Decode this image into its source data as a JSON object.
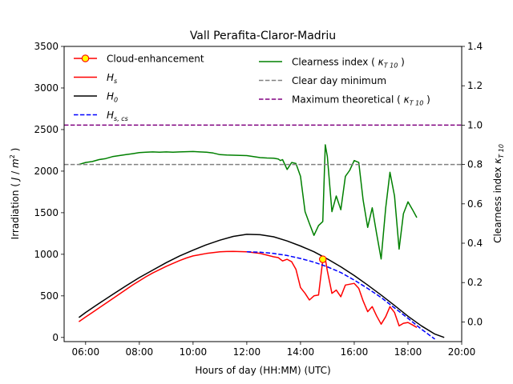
{
  "chart_data": {
    "type": "line",
    "title": "Vall Perafita-Claror-Madriu",
    "xlabel": "Hours of day (HH:MM) (UTC)",
    "ylabel_left": "Irradiation ( J / m² )",
    "ylabel_right": "Clearness index κT 10",
    "xlim_hours": [
      5.2,
      20.0
    ],
    "ylim_left": [
      -50,
      3500
    ],
    "ylim_right": [
      -0.1,
      1.4
    ],
    "x_ticks": [
      6,
      8,
      10,
      12,
      14,
      16,
      18,
      20
    ],
    "x_tick_labels": [
      "06:00",
      "08:00",
      "10:00",
      "12:00",
      "14:00",
      "16:00",
      "18:00",
      "20:00"
    ],
    "y_left_ticks": [
      0,
      500,
      1000,
      1500,
      2000,
      2500,
      3000,
      3500
    ],
    "y_right_ticks": [
      0.0,
      0.2,
      0.4,
      0.6,
      0.8,
      1.0,
      1.2,
      1.4
    ],
    "y_right_tick_labels": [
      "0.0",
      "0.2",
      "0.4",
      "0.6",
      "0.8",
      "1.0",
      "1.2",
      "1.4"
    ],
    "grid": false,
    "legend_left_position": "upper-left",
    "legend_right_position": "upper-center",
    "legend_left": [
      {
        "key": "cloud",
        "label": "Cloud-enhancement",
        "style": "marker",
        "color": "#ff0000",
        "fill": "#ffff00"
      },
      {
        "key": "hs",
        "label": "Hs",
        "label_main": "H",
        "label_sub": "s",
        "style": "solid",
        "color": "#ff0000"
      },
      {
        "key": "h0",
        "label": "H0",
        "label_main": "H",
        "label_sub": "0",
        "style": "solid",
        "color": "#000000"
      },
      {
        "key": "hscs",
        "label": "Hs,cs",
        "label_main": "H",
        "label_sub": "s, cs",
        "style": "dashed",
        "color": "#0000ff"
      }
    ],
    "legend_right": [
      {
        "key": "kt",
        "label": "Clearness index ( κT 10 )",
        "label_main": "Clearness index ( ",
        "label_k": "κ",
        "label_sub": "T 10",
        "label_end": " )",
        "style": "solid",
        "color": "#008000"
      },
      {
        "key": "clear_min",
        "label": "Clear day minimum",
        "style": "dashed",
        "color": "#808080"
      },
      {
        "key": "max_theo",
        "label": "Maximum theoretical ( κT 10 )",
        "label_main": "Maximum theoretical ( ",
        "label_k": "κ",
        "label_sub": "T 10",
        "label_end": " )",
        "style": "dashed",
        "color": "#800080"
      }
    ],
    "series": [
      {
        "name": "Hs",
        "axis": "left",
        "color": "#ff0000",
        "style": "solid",
        "x": [
          5.75,
          6.0,
          6.25,
          6.5,
          6.75,
          7.0,
          7.25,
          7.5,
          7.75,
          8.0,
          8.25,
          8.5,
          8.75,
          9.0,
          9.25,
          9.5,
          9.75,
          10.0,
          10.25,
          10.5,
          10.75,
          11.0,
          11.25,
          11.5,
          11.75,
          12.0,
          12.25,
          12.5,
          12.75,
          13.0,
          13.17,
          13.33,
          13.5,
          13.67,
          13.83,
          14.0,
          14.17,
          14.33,
          14.5,
          14.67,
          14.83,
          14.92,
          15.0,
          15.17,
          15.33,
          15.5,
          15.67,
          15.83,
          16.0,
          16.17,
          16.33,
          16.5,
          16.67,
          16.83,
          17.0,
          17.17,
          17.33,
          17.5,
          17.67,
          17.83,
          18.0,
          18.17,
          18.33
        ],
        "y": [
          190,
          245,
          300,
          355,
          410,
          465,
          520,
          575,
          630,
          680,
          730,
          775,
          815,
          855,
          890,
          925,
          955,
          980,
          995,
          1010,
          1020,
          1030,
          1033,
          1035,
          1032,
          1030,
          1020,
          1010,
          990,
          970,
          960,
          920,
          940,
          910,
          820,
          600,
          530,
          450,
          500,
          510,
          930,
          950,
          800,
          530,
          570,
          490,
          630,
          640,
          650,
          590,
          440,
          310,
          370,
          260,
          160,
          250,
          370,
          300,
          140,
          170,
          180,
          150,
          120
        ]
      },
      {
        "name": "H0",
        "axis": "left",
        "color": "#000000",
        "style": "solid",
        "x": [
          5.75,
          6.0,
          6.5,
          7.0,
          7.5,
          8.0,
          8.5,
          9.0,
          9.5,
          10.0,
          10.5,
          11.0,
          11.5,
          12.0,
          12.5,
          13.0,
          13.5,
          14.0,
          14.5,
          15.0,
          15.5,
          16.0,
          16.5,
          17.0,
          17.5,
          18.0,
          18.5,
          19.0,
          19.35
        ],
        "y": [
          240,
          300,
          410,
          515,
          620,
          720,
          810,
          900,
          980,
          1050,
          1115,
          1170,
          1215,
          1240,
          1235,
          1210,
          1160,
          1100,
          1030,
          945,
          850,
          745,
          630,
          510,
          385,
          255,
          140,
          40,
          0
        ]
      },
      {
        "name": "Hs,cs",
        "axis": "left",
        "color": "#0000ff",
        "style": "dashed",
        "x": [
          12.0,
          12.5,
          13.0,
          13.5,
          14.0,
          14.5,
          15.0,
          15.5,
          16.0,
          16.5,
          17.0,
          17.5,
          18.0,
          18.5,
          19.0
        ],
        "y": [
          1030,
          1025,
          1010,
          985,
          950,
          905,
          850,
          780,
          690,
          590,
          480,
          355,
          230,
          100,
          -20
        ]
      },
      {
        "name": "Clearness index",
        "axis": "right",
        "color": "#008000",
        "style": "solid",
        "x": [
          5.75,
          6.0,
          6.25,
          6.5,
          6.75,
          7.0,
          7.25,
          7.5,
          7.75,
          8.0,
          8.25,
          8.5,
          8.75,
          9.0,
          9.25,
          9.5,
          9.75,
          10.0,
          10.25,
          10.5,
          10.75,
          11.0,
          11.25,
          11.5,
          11.75,
          12.0,
          12.25,
          12.5,
          12.75,
          13.0,
          13.17,
          13.25,
          13.33,
          13.5,
          13.67,
          13.83,
          14.0,
          14.17,
          14.33,
          14.5,
          14.67,
          14.83,
          14.92,
          15.0,
          15.17,
          15.33,
          15.5,
          15.67,
          15.83,
          16.0,
          16.17,
          16.33,
          16.5,
          16.67,
          16.83,
          17.0,
          17.17,
          17.33,
          17.5,
          17.67,
          17.83,
          18.0,
          18.17,
          18.33
        ],
        "y": [
          0.8,
          0.81,
          0.815,
          0.825,
          0.83,
          0.84,
          0.845,
          0.85,
          0.855,
          0.86,
          0.862,
          0.864,
          0.862,
          0.864,
          0.862,
          0.864,
          0.865,
          0.866,
          0.864,
          0.862,
          0.858,
          0.85,
          0.848,
          0.847,
          0.846,
          0.845,
          0.84,
          0.835,
          0.833,
          0.832,
          0.828,
          0.82,
          0.825,
          0.775,
          0.81,
          0.805,
          0.74,
          0.56,
          0.5,
          0.44,
          0.49,
          0.51,
          0.9,
          0.84,
          0.56,
          0.64,
          0.57,
          0.74,
          0.77,
          0.82,
          0.81,
          0.62,
          0.48,
          0.58,
          0.45,
          0.32,
          0.58,
          0.76,
          0.64,
          0.37,
          0.55,
          0.61,
          0.57,
          0.53
        ]
      },
      {
        "name": "Clear day minimum",
        "axis": "right",
        "color": "#808080",
        "style": "dashed",
        "x": [
          5.2,
          20.0
        ],
        "y": [
          0.8,
          0.8
        ]
      },
      {
        "name": "Maximum theoretical",
        "axis": "right",
        "color": "#800080",
        "style": "dashed",
        "x": [
          5.2,
          20.0
        ],
        "y": [
          1.0,
          1.0
        ]
      }
    ],
    "points": [
      {
        "name": "Cloud-enhancement",
        "axis": "left",
        "x": 14.83,
        "y": 940,
        "color": "#ff0000",
        "fill": "#ffff00"
      }
    ]
  }
}
